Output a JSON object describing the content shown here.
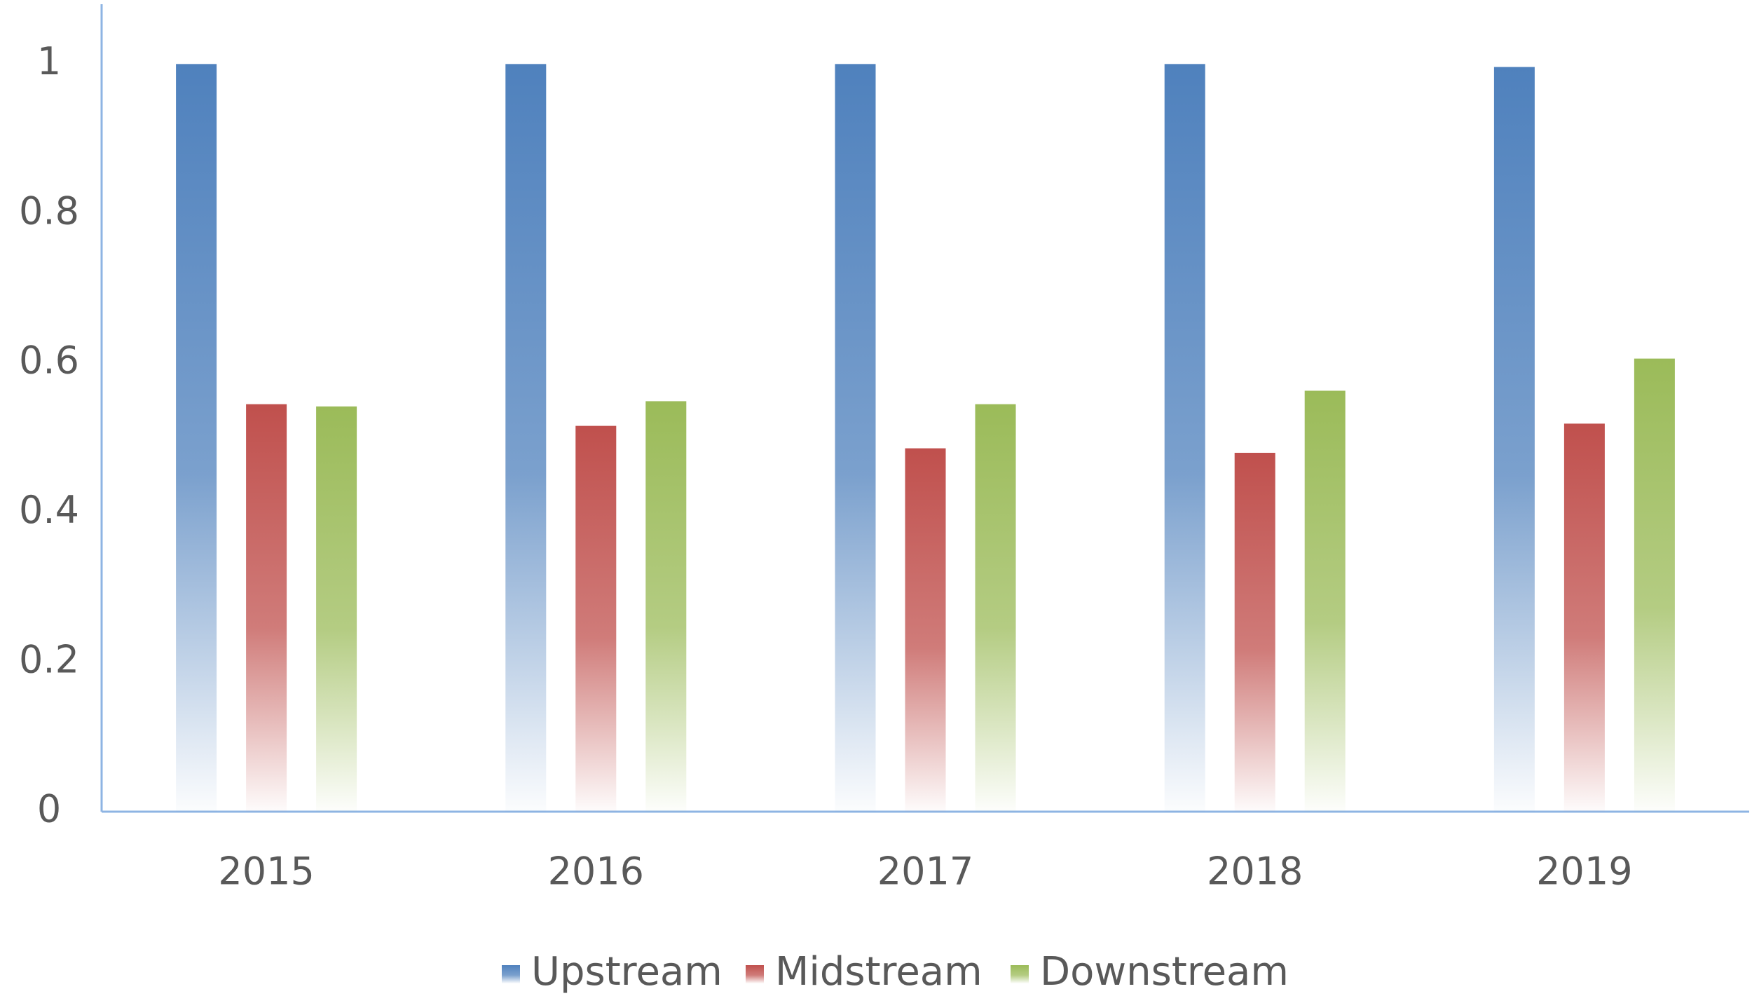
{
  "chart_data": {
    "type": "bar",
    "title": "",
    "xlabel": "",
    "ylabel": "",
    "categories": [
      "2015",
      "2016",
      "2017",
      "2018",
      "2019"
    ],
    "series": [
      {
        "name": "Upstream",
        "color": "#4F81BD",
        "values": [
          1.0,
          1.0,
          1.0,
          1.0,
          0.996
        ]
      },
      {
        "name": "Midstream",
        "color": "#C0504D",
        "values": [
          0.545,
          0.516,
          0.486,
          0.48,
          0.519
        ]
      },
      {
        "name": "Downstream",
        "color": "#9BBB59",
        "values": [
          0.542,
          0.549,
          0.545,
          0.563,
          0.606
        ]
      }
    ],
    "ylim": [
      0,
      1.08
    ],
    "yticks": [
      "0",
      "0.2",
      "0.4",
      "0.6",
      "0.8",
      "1"
    ],
    "ytick_values": [
      0,
      0.2,
      0.4,
      0.6,
      0.8,
      1
    ],
    "grid": false,
    "legend_position": "bottom",
    "bar_style": "vertical gradient fading to white at the base",
    "axis_color": "#8EB4E3"
  }
}
